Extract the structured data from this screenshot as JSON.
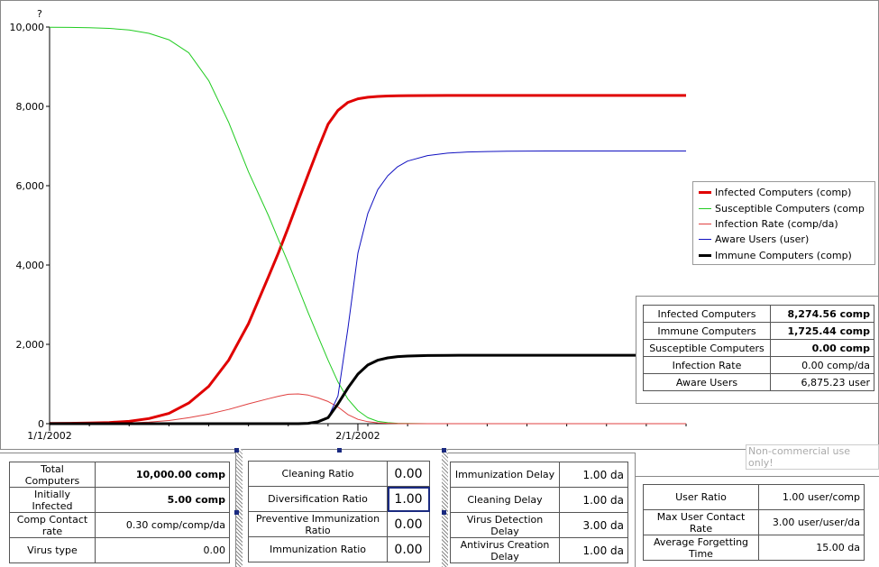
{
  "chart_data": {
    "type": "line",
    "y_unit_label": "?",
    "ylim": [
      0,
      10000
    ],
    "y_ticks": [
      "0",
      "2,000",
      "4,000",
      "6,000",
      "8,000",
      "10,000"
    ],
    "x_ticks": [
      "1/1/2002",
      "2/1/2002"
    ],
    "x": [
      0,
      2,
      4,
      6,
      8,
      10,
      12,
      14,
      16,
      18,
      20,
      22,
      23,
      24,
      25,
      26,
      27,
      28,
      29,
      30,
      31,
      32,
      33,
      34,
      35,
      36,
      38,
      40,
      42,
      44,
      46,
      48,
      50,
      52,
      54,
      56,
      58,
      60,
      62,
      64
    ],
    "series": [
      {
        "name": "Infected Computers (comp)",
        "color": "#e00000",
        "width": 3,
        "values": [
          5,
          8,
          15,
          30,
          60,
          130,
          260,
          520,
          940,
          1600,
          2520,
          3700,
          4300,
          4950,
          5620,
          6280,
          6930,
          7550,
          7900,
          8100,
          8190,
          8230,
          8250,
          8262,
          8268,
          8271,
          8273,
          8274,
          8274,
          8274,
          8274,
          8274,
          8274,
          8274,
          8274,
          8274,
          8274,
          8274,
          8274,
          8274
        ]
      },
      {
        "name": "Susceptible Computers (comp",
        "color": "#22cc22",
        "width": 1,
        "values": [
          9995,
          9992,
          9985,
          9965,
          9925,
          9840,
          9680,
          9350,
          8650,
          7600,
          6350,
          5250,
          4650,
          4050,
          3430,
          2800,
          2200,
          1600,
          1050,
          620,
          330,
          150,
          60,
          25,
          10,
          4,
          1,
          0,
          0,
          0,
          0,
          0,
          0,
          0,
          0,
          0,
          0,
          0,
          0,
          0
        ]
      },
      {
        "name": "Infection Rate (comp/da)",
        "color": "#e04040",
        "width": 1,
        "values": [
          0,
          1,
          3,
          8,
          18,
          38,
          80,
          150,
          240,
          360,
          500,
          630,
          690,
          740,
          750,
          720,
          650,
          560,
          420,
          230,
          110,
          50,
          20,
          8,
          3,
          1,
          0,
          0,
          0,
          0,
          0,
          0,
          0,
          0,
          0,
          0,
          0,
          0,
          0,
          0
        ]
      },
      {
        "name": "Aware Users (user)",
        "color": "#1010c0",
        "width": 1,
        "values": [
          0,
          0,
          0,
          0,
          0,
          0,
          0,
          0,
          0,
          0,
          0,
          0,
          0,
          0,
          0,
          0,
          30,
          150,
          700,
          2400,
          4300,
          5300,
          5900,
          6250,
          6480,
          6620,
          6760,
          6820,
          6850,
          6862,
          6868,
          6872,
          6874,
          6875,
          6875,
          6875,
          6875,
          6875,
          6875,
          6875
        ]
      },
      {
        "name": "Immune Computers (comp)",
        "color": "#000000",
        "width": 3,
        "values": [
          0,
          0,
          0,
          0,
          0,
          0,
          0,
          0,
          0,
          0,
          0,
          0,
          0,
          0,
          0,
          10,
          50,
          150,
          500,
          900,
          1250,
          1480,
          1600,
          1660,
          1690,
          1705,
          1718,
          1722,
          1724,
          1725,
          1725,
          1725,
          1725,
          1725,
          1725,
          1725,
          1725,
          1725,
          1725,
          1725
        ]
      }
    ]
  },
  "summary": [
    {
      "label": "Infected Computers",
      "value": "8,274.56 comp",
      "bold": true
    },
    {
      "label": "Immune Computers",
      "value": "1,725.44 comp",
      "bold": true
    },
    {
      "label": "Susceptible Computers",
      "value": "0.00 comp",
      "bold": true
    },
    {
      "label": "Infection Rate",
      "value": "0.00 comp/da",
      "bold": false
    },
    {
      "label": "Aware Users",
      "value": "6,875.23 user",
      "bold": false
    }
  ],
  "panel1": [
    {
      "label": "Total Computers",
      "value": "10,000.00 comp",
      "bold": true
    },
    {
      "label": "Initially Infected",
      "value": "5.00 comp",
      "bold": true
    },
    {
      "label": "Comp Contact rate",
      "value": "0.30 comp/comp/da",
      "bold": false
    },
    {
      "label": "Virus type",
      "value": "0.00",
      "bold": false
    }
  ],
  "panel2": [
    {
      "label": "Cleaning Ratio",
      "value": "0.00"
    },
    {
      "label": "Diversification Ratio",
      "value": "1.00"
    },
    {
      "label": "Preventive Immunization Ratio",
      "value": "0.00"
    },
    {
      "label": "Immunization Ratio",
      "value": "0.00"
    }
  ],
  "panel3": [
    {
      "label": "Immunization Delay",
      "value": "1.00 da"
    },
    {
      "label": "Cleaning Delay",
      "value": "1.00 da"
    },
    {
      "label": "Virus Detection Delay",
      "value": "3.00 da"
    },
    {
      "label": "Antivirus Creation Delay",
      "value": "1.00 da"
    }
  ],
  "panel4": [
    {
      "label": "User Ratio",
      "value": "1.00 user/comp"
    },
    {
      "label": "Max User Contact Rate",
      "value": "3.00 user/user/da"
    },
    {
      "label": "Average Forgetting Time",
      "value": "15.00 da"
    }
  ],
  "watermark": "Non-commercial use only!"
}
